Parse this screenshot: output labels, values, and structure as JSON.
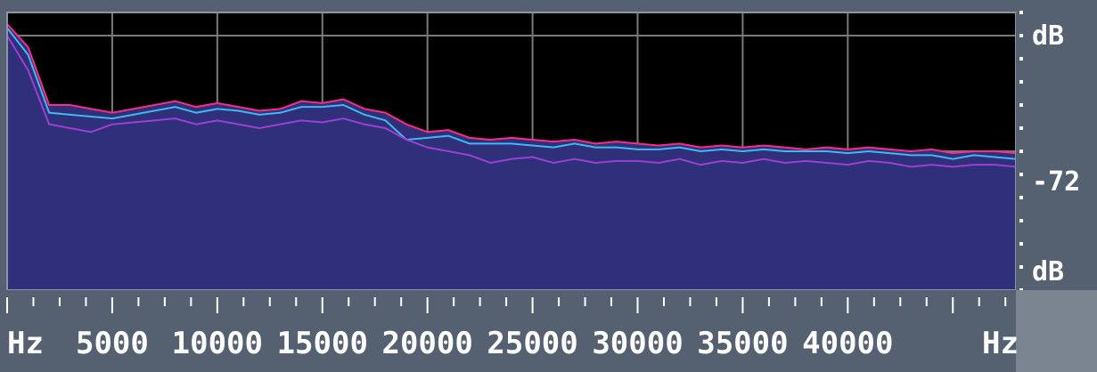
{
  "chart_data": {
    "type": "area",
    "title": "",
    "x_unit_left": "Hz",
    "x_unit_right": "Hz",
    "x_ticks": [
      5000,
      10000,
      15000,
      20000,
      25000,
      30000,
      35000,
      40000
    ],
    "xlim": [
      0,
      48000
    ],
    "y_unit_top": "dB",
    "y_unit_bottom": "dB",
    "y_mid_label": "-72",
    "ylim": [
      -144,
      0
    ],
    "grid": true,
    "colors": {
      "background": "#000000",
      "frame": "#556070",
      "grid": "#7a7a7a",
      "fill": "#30307a",
      "series_a": "#ff2a8a",
      "series_b": "#3fb8f0",
      "series_c": "#9b3fd0",
      "peak": "#8a0a3a"
    },
    "x": [
      0,
      1000,
      2000,
      3000,
      4000,
      5000,
      6000,
      7000,
      8000,
      9000,
      10000,
      11000,
      12000,
      13000,
      14000,
      15000,
      16000,
      17000,
      18000,
      19000,
      20000,
      21000,
      22000,
      23000,
      24000,
      25000,
      26000,
      27000,
      28000,
      29000,
      30000,
      31000,
      32000,
      33000,
      34000,
      35000,
      36000,
      37000,
      38000,
      39000,
      40000,
      41000,
      42000,
      43000,
      44000,
      45000,
      46000,
      47000,
      48000
    ],
    "series": [
      {
        "values": [
          -6,
          -18,
          -48,
          -48,
          -50,
          -52,
          -50,
          -48,
          -46,
          -49,
          -47,
          -49,
          -51,
          -50,
          -46,
          -47,
          -45,
          -50,
          -52,
          -58,
          -62,
          -61,
          -65,
          -66,
          -65,
          -66,
          -67,
          -66,
          -68,
          -67,
          -68,
          -69,
          -68,
          -70,
          -69,
          -70,
          -69,
          -70,
          -71,
          -70,
          -71,
          -70,
          -71,
          -72,
          -71,
          -73,
          -72,
          -72,
          -73
        ]
      },
      {
        "values": [
          -8,
          -22,
          -52,
          -53,
          -54,
          -55,
          -53,
          -51,
          -49,
          -52,
          -50,
          -51,
          -53,
          -52,
          -49,
          -49,
          -48,
          -53,
          -56,
          -66,
          -65,
          -64,
          -68,
          -68,
          -68,
          -69,
          -70,
          -68,
          -70,
          -70,
          -71,
          -71,
          -70,
          -72,
          -71,
          -72,
          -71,
          -72,
          -72,
          -72,
          -73,
          -72,
          -73,
          -74,
          -74,
          -76,
          -74,
          -75,
          -76
        ]
      },
      {
        "values": [
          -12,
          -30,
          -58,
          -60,
          -62,
          -58,
          -57,
          -56,
          -55,
          -58,
          -56,
          -58,
          -60,
          -58,
          -56,
          -57,
          -55,
          -58,
          -60,
          -66,
          -70,
          -72,
          -74,
          -78,
          -76,
          -75,
          -78,
          -76,
          -78,
          -77,
          -77,
          -78,
          -76,
          -79,
          -77,
          -78,
          -76,
          -78,
          -77,
          -78,
          -79,
          -77,
          -78,
          -80,
          -79,
          -80,
          -79,
          -79,
          -80
        ]
      }
    ]
  }
}
